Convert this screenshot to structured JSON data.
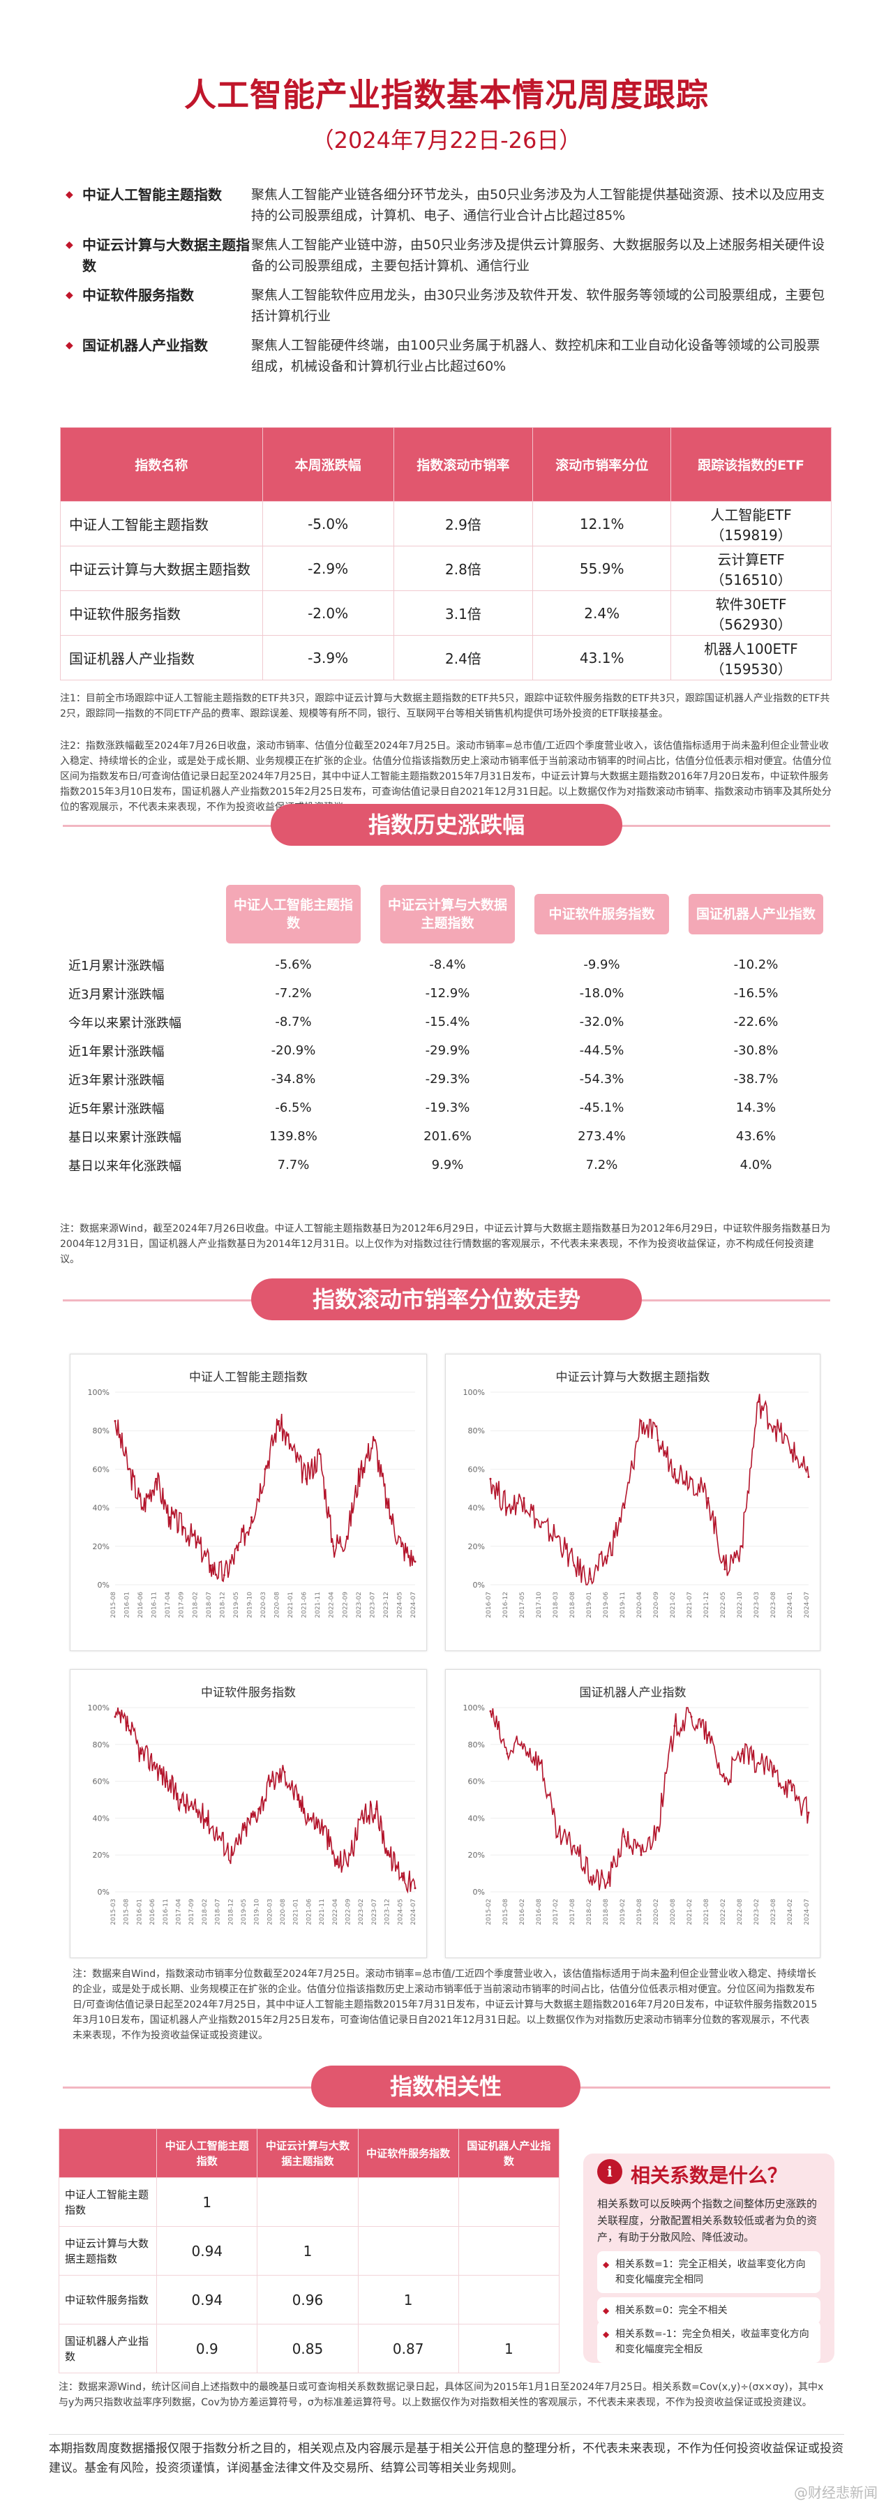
{
  "header": {
    "title": "人工智能产业指数基本情况周度跟踪",
    "subtitle": "（2024年7月22日-26日）"
  },
  "intro": [
    {
      "name": "中证人工智能主题指数",
      "desc": "聚焦人工智能产业链各细分环节龙头，由50只业务涉及为人工智能提供基础资源、技术以及应用支持的公司股票组成，计算机、电子、通信行业合计占比超过85%"
    },
    {
      "name": "中证云计算与大数据主题指数",
      "desc": "聚焦人工智能产业链中游，由50只业务涉及提供云计算服务、大数据服务以及上述服务相关硬件设备的公司股票组成，主要包括计算机、通信行业"
    },
    {
      "name": "中证软件服务指数",
      "desc": "聚焦人工智能软件应用龙头，由30只业务涉及软件开发、软件服务等领域的公司股票组成，主要包括计算机行业"
    },
    {
      "name": "国证机器人产业指数",
      "desc": "聚焦人工智能硬件终端，由100只业务属于机器人、数控机床和工业自动化设备等领域的公司股票组成，机械设备和计算机行业占比超过60%"
    }
  ],
  "weekly_table": {
    "headers": [
      "指数名称",
      "本周涨跌幅",
      "指数滚动市销率",
      "滚动市销率分位",
      "跟踪该指数的ETF"
    ],
    "rows": [
      {
        "name": "中证人工智能主题指数",
        "change": "-5.0%",
        "ps": "2.9倍",
        "pct": "12.1%",
        "etf": "人工智能ETF",
        "etf_code": "（159819）"
      },
      {
        "name": "中证云计算与大数据主题指数",
        "change": "-2.9%",
        "ps": "2.8倍",
        "pct": "55.9%",
        "etf": "云计算ETF",
        "etf_code": "（516510）"
      },
      {
        "name": "中证软件服务指数",
        "change": "-2.0%",
        "ps": "3.1倍",
        "pct": "2.4%",
        "etf": "软件30ETF",
        "etf_code": "（562930）"
      },
      {
        "name": "国证机器人产业指数",
        "change": "-3.9%",
        "ps": "2.4倍",
        "pct": "43.1%",
        "etf": "机器人100ETF",
        "etf_code": "（159530）"
      }
    ]
  },
  "notes1": [
    "注1：目前全市场跟踪中证人工智能主题指数的ETF共3只，跟踪中证云计算与大数据主题指数的ETF共5只，跟踪中证软件服务指数的ETF共3只，跟踪国证机器人产业指数的ETF共2只，跟踪同一指数的不同ETF产品的费率、跟踪误差、规模等有所不同，银行、互联网平台等相关销售机构提供可场外投资的ETF联接基金。",
    "注2：指数涨跌幅截至2024年7月26日收盘，滚动市销率、估值分位截至2024年7月25日。滚动市销率=总市值/工近四个季度营业收入，该估值指标适用于尚未盈利但企业营业收入稳定、持续增长的企业，或是处于成长期、业务规模正在扩张的企业。估值分位指该指数历史上滚动市销率低于当前滚动市销率的时间占比，估值分位低表示相对便宜。估值分位区间为指数发布日/可查询估值记录日起至2024年7月25日，其中中证人工智能主题指数2015年7月31日发布，中证云计算与大数据主题指数2016年7月20日发布，中证软件服务指数2015年3月10日发布，国证机器人产业指数2015年2月25日发布，可查询估值记录日自2021年12月31日起。以上数据仅作为对指数滚动市销率、指数滚动市销率及其所处分位的客观展示，不代表未来表现，不作为投资收益保证或投资建议。"
  ],
  "history": {
    "section_title": "指数历史涨跌幅",
    "headers": [
      "中证人工智能主题指数",
      "中证云计算与大数据主题指数",
      "中证软件服务指数",
      "国证机器人产业指数"
    ],
    "rows": [
      {
        "label": "近1月累计涨跌幅",
        "values": [
          "-5.6%",
          "-8.4%",
          "-9.9%",
          "-10.2%"
        ]
      },
      {
        "label": "近3月累计涨跌幅",
        "values": [
          "-7.2%",
          "-12.9%",
          "-18.0%",
          "-16.5%"
        ]
      },
      {
        "label": "今年以来累计涨跌幅",
        "values": [
          "-8.7%",
          "-15.4%",
          "-32.0%",
          "-22.6%"
        ]
      },
      {
        "label": "近1年累计涨跌幅",
        "values": [
          "-20.9%",
          "-29.9%",
          "-44.5%",
          "-30.8%"
        ]
      },
      {
        "label": "近3年累计涨跌幅",
        "values": [
          "-34.8%",
          "-29.3%",
          "-54.3%",
          "-38.7%"
        ]
      },
      {
        "label": "近5年累计涨跌幅",
        "values": [
          "-6.5%",
          "-19.3%",
          "-45.1%",
          "14.3%"
        ]
      },
      {
        "label": "基日以来累计涨跌幅",
        "values": [
          "139.8%",
          "201.6%",
          "273.4%",
          "43.6%"
        ]
      },
      {
        "label": "基日以来年化涨跌幅",
        "values": [
          "7.7%",
          "9.9%",
          "7.2%",
          "4.0%"
        ]
      }
    ],
    "note": "注：数据来源Wind，截至2024年7月26日收盘。中证人工智能主题指数基日为2012年6月29日，中证云计算与大数据主题指数基日为2012年6月29日，中证软件服务指数基日为2004年12月31日，国证机器人产业指数基日为2014年12月31日。以上仅作为对指数过往行情数据的客观展示，不代表未来表现，不作为投资收益保证，亦不构成任何投资建议。"
  },
  "trend": {
    "section_title": "指数滚动市销率分位数走势",
    "charts": [
      {
        "title": "中证人工智能主题指数"
      },
      {
        "title": "中证云计算与大数据主题指数"
      },
      {
        "title": "中证软件服务指数"
      },
      {
        "title": "国证机器人产业指数"
      }
    ],
    "y_ticks": [
      "100%",
      "80%",
      "60%",
      "40%",
      "20%",
      "0%"
    ],
    "note": "注：数据来自Wind，指数滚动市销率分位数截至2024年7月25日。滚动市销率=总市值/工近四个季度营业收入，该估值指标适用于尚未盈利但企业营业收入稳定、持续增长的企业，或是处于成长期、业务规模正在扩张的企业。估值分位指该指数历史上滚动市销率低于当前滚动市销率的时间占比，估值分位低表示相对便宜。分位区间为指数发布日/可查询估值记录日起至2024年7月25日，其中中证人工智能主题指数2015年7月31日发布，中证云计算与大数据主题指数2016年7月20日发布，中证软件服务指数2015年3月10日发布，国证机器人产业指数2015年2月25日发布，可查询估值记录日自2021年12月31日起。以上数据仅作为对指数历史滚动市销率分位数的客观展示，不代表未来表现，不作为投资收益保证或投资建议。"
  },
  "chart_data": [
    {
      "type": "line",
      "title": "中证人工智能主题指数",
      "x": [
        "2015-08",
        "2016-01",
        "2016-06",
        "2016-11",
        "2017-04",
        "2017-09",
        "2018-02",
        "2018-07",
        "2018-12",
        "2019-05",
        "2019-10",
        "2020-03",
        "2020-08",
        "2021-01",
        "2021-06",
        "2021-11",
        "2022-04",
        "2022-09",
        "2023-02",
        "2023-07",
        "2023-12",
        "2024-05",
        "2024-07"
      ],
      "values": [
        85,
        60,
        40,
        55,
        35,
        30,
        22,
        10,
        5,
        18,
        35,
        60,
        85,
        70,
        55,
        68,
        20,
        25,
        60,
        75,
        40,
        20,
        12
      ],
      "ylim": [
        0,
        100
      ]
    },
    {
      "type": "line",
      "title": "中证云计算与大数据主题指数",
      "x": [
        "2016-07",
        "2016-12",
        "2017-05",
        "2017-10",
        "2018-03",
        "2018-08",
        "2019-01",
        "2019-06",
        "2019-11",
        "2020-04",
        "2020-09",
        "2021-02",
        "2021-07",
        "2021-12",
        "2022-05",
        "2022-10",
        "2023-03",
        "2023-08",
        "2024-01",
        "2024-07"
      ],
      "values": [
        55,
        40,
        45,
        30,
        25,
        10,
        3,
        15,
        40,
        85,
        75,
        60,
        55,
        45,
        8,
        20,
        95,
        82,
        70,
        56
      ],
      "ylim": [
        0,
        100
      ]
    },
    {
      "type": "line",
      "title": "中证软件服务指数",
      "x": [
        "2015-03",
        "2015-08",
        "2016-01",
        "2016-06",
        "2016-11",
        "2017-04",
        "2017-09",
        "2018-02",
        "2018-07",
        "2018-12",
        "2019-05",
        "2019-10",
        "2020-03",
        "2020-08",
        "2021-01",
        "2021-06",
        "2021-11",
        "2022-04",
        "2022-09",
        "2023-02",
        "2023-07",
        "2023-12",
        "2024-05",
        "2024-07"
      ],
      "values": [
        95,
        90,
        75,
        70,
        60,
        50,
        45,
        40,
        30,
        20,
        35,
        45,
        60,
        65,
        50,
        40,
        35,
        15,
        20,
        40,
        45,
        20,
        10,
        2
      ],
      "ylim": [
        0,
        100
      ]
    },
    {
      "type": "line",
      "title": "国证机器人产业指数",
      "x": [
        "2015-02",
        "2015-08",
        "2016-02",
        "2016-08",
        "2017-02",
        "2017-08",
        "2018-02",
        "2018-08",
        "2019-02",
        "2019-08",
        "2020-02",
        "2020-08",
        "2021-02",
        "2021-08",
        "2022-02",
        "2022-08",
        "2023-02",
        "2023-08",
        "2024-02",
        "2024-07"
      ],
      "values": [
        98,
        75,
        80,
        70,
        30,
        25,
        8,
        5,
        30,
        20,
        35,
        90,
        95,
        85,
        60,
        75,
        70,
        65,
        55,
        43
      ],
      "ylim": [
        0,
        100
      ]
    }
  ],
  "correlation": {
    "section_title": "指数相关性",
    "headers": [
      "中证人工智能主题指数",
      "中证云计算与大数据主题指数",
      "中证软件服务指数",
      "国证机器人产业指数"
    ],
    "rows": [
      {
        "label": "中证人工智能主题指数",
        "values": [
          "1",
          "",
          "",
          ""
        ]
      },
      {
        "label": "中证云计算与大数据主题指数",
        "values": [
          "0.94",
          "1",
          "",
          ""
        ]
      },
      {
        "label": "中证软件服务指数",
        "values": [
          "0.94",
          "0.96",
          "1",
          ""
        ]
      },
      {
        "label": "国证机器人产业指数",
        "values": [
          "0.9",
          "0.85",
          "0.87",
          "1"
        ]
      }
    ],
    "info_title": "相关系数是什么？",
    "info_text": "相关系数可以反映两个指数之间整体历史涨跌的关联程度，分散配置相关系数较低或者为负的资产，有助于分散风险、降低波动。",
    "info_points": [
      "相关系数=1：完全正相关，收益率变化方向和变化幅度完全相同",
      "相关系数=0：完全不相关",
      "相关系数=-1：完全负相关，收益率变化方向和变化幅度完全相反"
    ],
    "note": "注：数据来源Wind，统计区间自上述指数中的最晚基日或可查询相关系数数据记录日起，具体区间为2015年1月1日至2024年7月25日。相关系数=Cov(x,y)÷(σx×σy)，其中x与y为两只指数收益率序列数据，Cov为协方差运算符号，σ为标准差运算符号。以上数据仅作为对指数相关性的客观展示，不代表未来表现，不作为投资收益保证或投资建议。"
  },
  "footer": "本期指数周度数据播报仅限于指数分析之目的，相关观点及内容展示是基于相关公开信息的整理分析，不代表未来表现，不作为任何投资收益保证或投资建议。基金有风险，投资须谨慎，详阅基金法律文件及交易所、结算公司等相关业务规则。",
  "watermark": "@财经悲新闻",
  "colors": {
    "accent": "#c0162b",
    "header_bg": "#e1576e",
    "negative": "#1e9c4a",
    "line": "#b3142b"
  }
}
